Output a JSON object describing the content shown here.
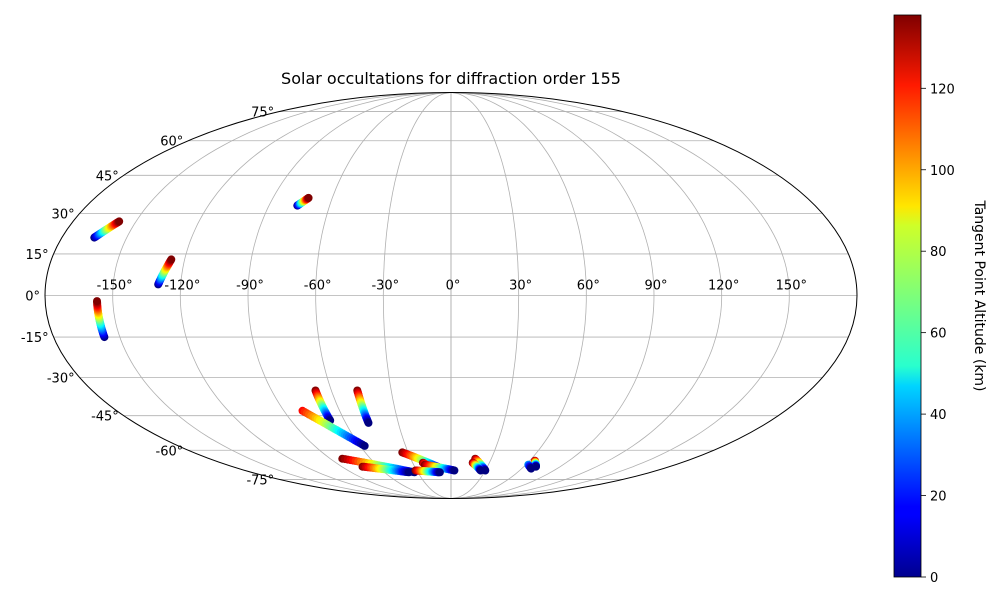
{
  "chart_data": {
    "type": "scatter",
    "title": "Solar occultations for diffraction order 155",
    "projection": "mollweide",
    "grid": true,
    "lon_ticks": [
      -150,
      -120,
      -90,
      -60,
      -30,
      0,
      30,
      60,
      90,
      120,
      150
    ],
    "lon_tick_labels": [
      "-150°",
      "-120°",
      "-90°",
      "-60°",
      "-30°",
      "0°",
      "30°",
      "60°",
      "90°",
      "120°",
      "150°"
    ],
    "lat_ticks": [
      75,
      60,
      45,
      30,
      15,
      0,
      -15,
      -30,
      -45,
      -60,
      -75
    ],
    "lat_tick_labels": [
      "75°",
      "60°",
      "45°",
      "30°",
      "15°",
      "0°",
      "-15°",
      "-30°",
      "-45°",
      "-60°",
      "-75°"
    ],
    "colorbar": {
      "label": "Tangent Point Altitude (km)",
      "colormap": "jet",
      "range": [
        0,
        138
      ],
      "ticks": [
        0,
        20,
        40,
        60,
        80,
        100,
        120
      ],
      "tick_labels": [
        "0",
        "20",
        "40",
        "60",
        "80",
        "100",
        "120"
      ]
    },
    "occultations": [
      {
        "start": [
          -165,
          21
        ],
        "end": [
          -158,
          27
        ],
        "alt_range": [
          0,
          138
        ]
      },
      {
        "start": [
          -130,
          4
        ],
        "end": [
          -126,
          13
        ],
        "alt_range": [
          0,
          138
        ]
      },
      {
        "start": [
          -157,
          -15
        ],
        "end": [
          -157,
          -2
        ],
        "alt_range": [
          0,
          138
        ]
      },
      {
        "start": [
          -76,
          33
        ],
        "end": [
          -72,
          36
        ],
        "alt_range": [
          0,
          138
        ]
      },
      {
        "start": [
          -68,
          -35
        ],
        "end": [
          -68,
          -47
        ],
        "alt_range": [
          138,
          0
        ]
      },
      {
        "start": [
          -47,
          -35
        ],
        "end": [
          -47,
          -48
        ],
        "alt_range": [
          138,
          0
        ]
      },
      {
        "start": [
          -80,
          -43
        ],
        "end": [
          -57,
          -58
        ],
        "alt_range": [
          120,
          0
        ]
      },
      {
        "start": [
          -81,
          -64
        ],
        "end": [
          -33,
          -71
        ],
        "alt_range": [
          138,
          0
        ]
      },
      {
        "start": [
          -73,
          -68
        ],
        "end": [
          -38,
          -71
        ],
        "alt_range": [
          138,
          0
        ]
      },
      {
        "start": [
          -34,
          -61
        ],
        "end": [
          -8,
          -69
        ],
        "alt_range": [
          138,
          0
        ]
      },
      {
        "start": [
          -22,
          -66
        ],
        "end": [
          -12,
          -71
        ],
        "alt_range": [
          138,
          0
        ]
      },
      {
        "start": [
          -21,
          -67
        ],
        "end": [
          3,
          -70
        ],
        "alt_range": [
          138,
          0
        ]
      },
      {
        "start": [
          -31,
          -70
        ],
        "end": [
          -10,
          -71
        ],
        "alt_range": [
          138,
          0
        ]
      },
      {
        "start": [
          18,
          -64
        ],
        "end": [
          30,
          -70
        ],
        "alt_range": [
          138,
          0
        ]
      },
      {
        "start": [
          17,
          -66
        ],
        "end": [
          26,
          -70
        ],
        "alt_range": [
          138,
          0
        ]
      },
      {
        "start": [
          64,
          -65
        ],
        "end": [
          70,
          -68
        ],
        "alt_range": [
          138,
          0
        ]
      },
      {
        "start": [
          62,
          -67
        ],
        "end": [
          68,
          -69
        ],
        "alt_range": [
          40,
          0
        ]
      }
    ]
  }
}
